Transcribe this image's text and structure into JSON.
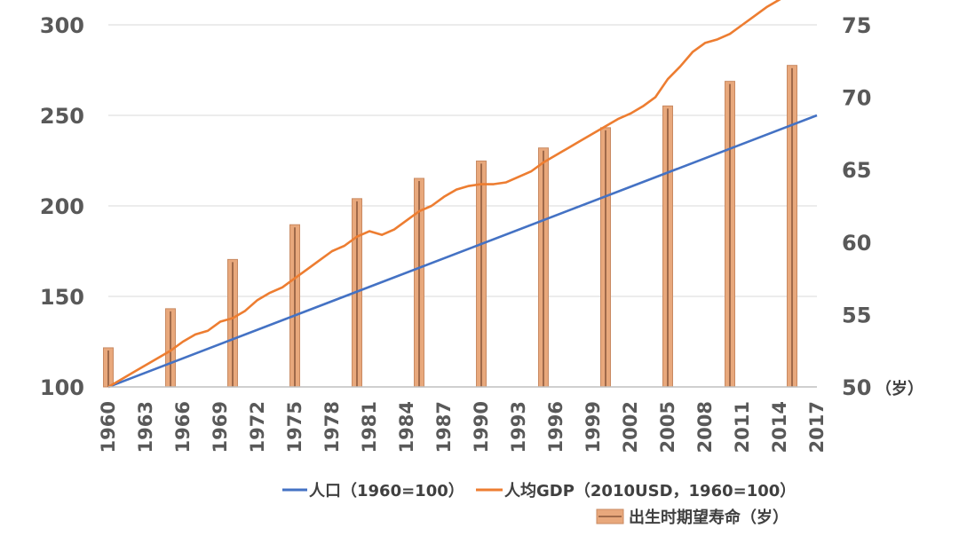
{
  "chart_data": {
    "type": "line",
    "x_tick_labels": [
      "1960",
      "1963",
      "1966",
      "1969",
      "1972",
      "1975",
      "1978",
      "1981",
      "1984",
      "1987",
      "1990",
      "1993",
      "1996",
      "1999",
      "2002",
      "2005",
      "2008",
      "2011",
      "2014",
      "2017"
    ],
    "y_left": {
      "ylim": [
        100,
        300
      ],
      "ticks": [
        100,
        150,
        200,
        250,
        300
      ]
    },
    "y_right": {
      "ylim": [
        50,
        75
      ],
      "ticks": [
        50,
        55,
        60,
        65,
        70,
        75
      ],
      "unit_label": "（岁）"
    },
    "grid": true,
    "legend_position": "bottom-right",
    "series": [
      {
        "name": "人口（1960=100）",
        "axis": "left",
        "color": "#4472C4",
        "x": [
          1960,
          2017
        ],
        "values": [
          100,
          250
        ]
      },
      {
        "name": "人均GDP（2010USD，1960=100）",
        "axis": "left",
        "color": "#ED7D31",
        "x": [
          1960,
          1961,
          1962,
          1963,
          1964,
          1965,
          1966,
          1967,
          1968,
          1969,
          1970,
          1971,
          1972,
          1973,
          1974,
          1975,
          1976,
          1977,
          1978,
          1979,
          1980,
          1981,
          1982,
          1983,
          1984,
          1985,
          1986,
          1987,
          1988,
          1989,
          1990,
          1991,
          1992,
          1993,
          1994,
          1995,
          1996,
          1997,
          1998,
          1999,
          2000,
          2001,
          2002,
          2003,
          2004,
          2005,
          2006,
          2007,
          2008,
          2009,
          2010,
          2011,
          2012,
          2013,
          2014,
          2015,
          2016,
          2017
        ],
        "values": [
          100,
          104,
          108,
          112,
          116,
          120,
          125,
          129,
          131,
          136,
          138,
          142,
          148,
          152,
          155,
          160,
          165,
          170,
          175,
          178,
          183,
          186,
          184,
          187,
          192,
          197,
          200,
          205,
          209,
          211,
          212,
          212,
          213,
          216,
          219,
          224,
          228,
          232,
          236,
          240,
          244,
          248,
          251,
          255,
          260,
          270,
          277,
          285,
          290,
          292,
          295,
          300,
          305,
          310,
          314,
          318,
          323,
          330
        ]
      },
      {
        "name": "出生时期望寿命（岁）",
        "axis": "right",
        "type": "bar",
        "color": "#E8A87C",
        "x": [
          "1960",
          "1965",
          "1970",
          "1975",
          "1980",
          "1985",
          "1990",
          "1995",
          "2000",
          "2005",
          "2010",
          "2015"
        ],
        "values": [
          52.7,
          55.4,
          58.8,
          61.2,
          63.0,
          64.4,
          65.6,
          66.5,
          67.9,
          69.4,
          71.1,
          72.2
        ]
      }
    ]
  }
}
